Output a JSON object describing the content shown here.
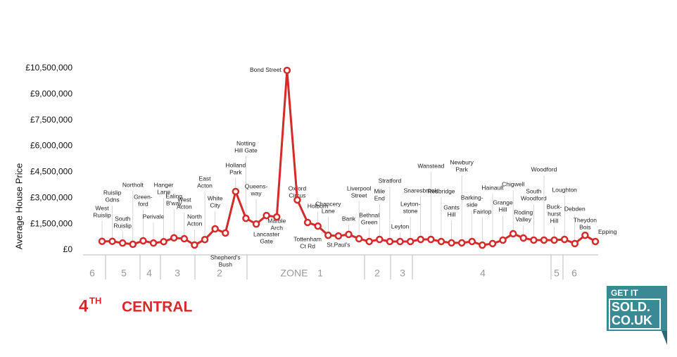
{
  "chart_data": {
    "type": "line",
    "y_axis_label": "Average House Price",
    "rank": "4",
    "rank_suffix": "TH",
    "line_name": "CENTRAL",
    "color": "#d42a2a",
    "categories": [
      [
        "West",
        "Ruislip"
      ],
      [
        "Ruislip",
        "Gdns"
      ],
      [
        "South",
        "Ruislip"
      ],
      [
        "Northolt"
      ],
      [
        "Green-",
        "ford"
      ],
      [
        "Perivale"
      ],
      [
        "Hanger",
        "Lane"
      ],
      [
        "Ealing",
        "B'way"
      ],
      [
        "West",
        "Acton"
      ],
      [
        "North",
        "Acton"
      ],
      [
        "East",
        "Acton"
      ],
      [
        "White",
        "City"
      ],
      [
        "Shepherd's",
        "Bush"
      ],
      [
        "Holland",
        "Park"
      ],
      [
        "Notting",
        "Hill Gate"
      ],
      [
        "Queens-",
        "way"
      ],
      [
        "Lancaster",
        "Gate"
      ],
      [
        "Marble",
        "Arch"
      ],
      [
        "Bond Street"
      ],
      [
        "Oxford",
        "Circus"
      ],
      [
        "Tottenham",
        "Ct Rd"
      ],
      [
        "Holborn"
      ],
      [
        "Chancery",
        "Lane"
      ],
      [
        "St.Paul's"
      ],
      [
        "Bank"
      ],
      [
        "Liverpool",
        "Street"
      ],
      [
        "Bethnal",
        "Green"
      ],
      [
        "Mile",
        "End"
      ],
      [
        "Stratford"
      ],
      [
        "Leyton"
      ],
      [
        "Leyton-",
        "stone"
      ],
      [
        "Snaresbrook"
      ],
      [
        "Wanstead"
      ],
      [
        "Redbridge"
      ],
      [
        "Gants",
        "Hill"
      ],
      [
        "Newbury",
        "Park"
      ],
      [
        "Barking-",
        "side"
      ],
      [
        "Fairlop"
      ],
      [
        "Hainault"
      ],
      [
        "Grange",
        "Hill"
      ],
      [
        "Chigwell"
      ],
      [
        "Roding",
        "Valley"
      ],
      [
        "South",
        "Woodford"
      ],
      [
        "Woodford"
      ],
      [
        "Buck-",
        "hurst",
        "Hill"
      ],
      [
        "Loughton"
      ],
      [
        "Debden"
      ],
      [
        "Theydon",
        "Bois"
      ],
      [
        "Epping"
      ]
    ],
    "values": [
      500000,
      500000,
      400000,
      330000,
      530000,
      400000,
      480000,
      700000,
      650000,
      290000,
      600000,
      1220000,
      980000,
      3380000,
      1830000,
      1500000,
      1990000,
      1910000,
      10380000,
      2890000,
      1590000,
      1380000,
      850000,
      810000,
      900000,
      650000,
      490000,
      610000,
      490000,
      490000,
      490000,
      610000,
      610000,
      490000,
      410000,
      410000,
      490000,
      280000,
      370000,
      570000,
      940000,
      690000,
      570000,
      570000,
      570000,
      610000,
      370000,
      850000,
      490000
    ],
    "ylim": [
      0,
      10500000
    ],
    "yticks": [
      {
        "value": 0,
        "label": "£0"
      },
      {
        "value": 1500000,
        "label": "£1,500,000"
      },
      {
        "value": 3000000,
        "label": "£3,000,000"
      },
      {
        "value": 4500000,
        "label": "£4,500,000"
      },
      {
        "value": 6000000,
        "label": "£6,000,000"
      },
      {
        "value": 7500000,
        "label": "£7,500,000"
      },
      {
        "value": 9000000,
        "label": "£9,000,000"
      },
      {
        "value": 10500000,
        "label": "£10,500,000"
      }
    ],
    "zones": [
      "6",
      "5",
      "4",
      "3",
      "2",
      "ZONE",
      "1",
      "2",
      "3",
      "4",
      "5",
      "6"
    ],
    "logo": [
      "GET IT",
      "SOLD.",
      "CO.UK"
    ]
  }
}
